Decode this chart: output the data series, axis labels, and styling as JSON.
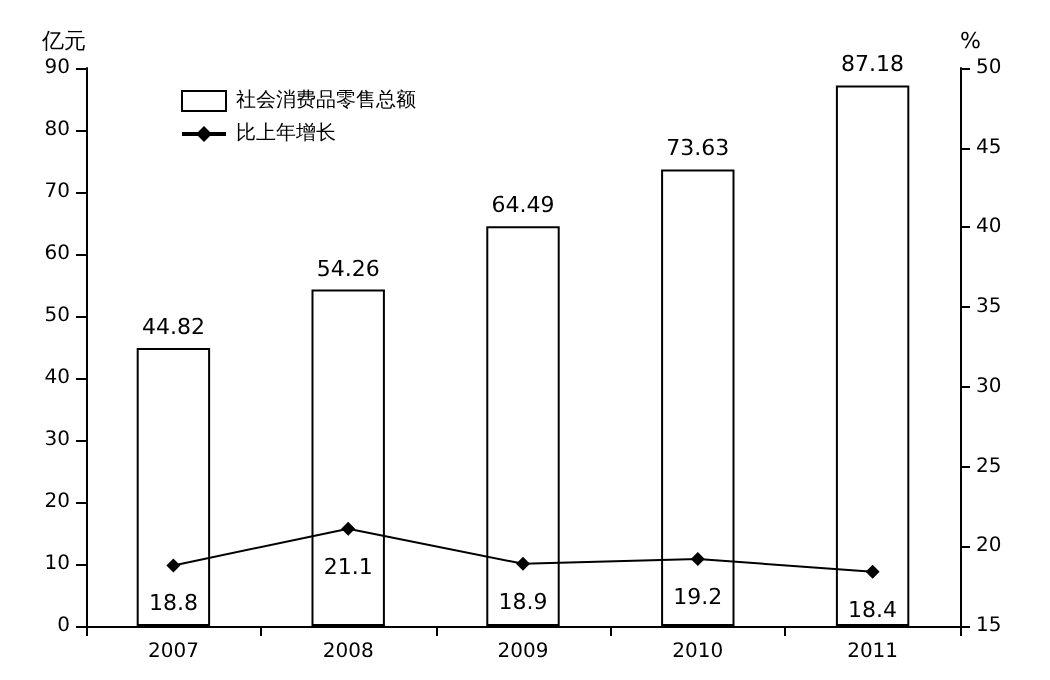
{
  "chart_data": {
    "type": "bar",
    "ylabel": "亿元",
    "y2label": "%",
    "categories": [
      "2007",
      "2008",
      "2009",
      "2010",
      "2011"
    ],
    "series": [
      {
        "name": "社会消费品零售总额",
        "color": "#ffffff",
        "values": [
          44.82,
          54.26,
          64.49,
          73.63,
          87.18
        ]
      },
      {
        "name": "比上年增长",
        "type": "line",
        "axis": "y2",
        "color": "#000000",
        "values": [
          18.8,
          21.1,
          18.9,
          19.2,
          18.4
        ]
      }
    ],
    "ylim": [
      0,
      90
    ],
    "yticks": [
      0,
      10,
      20,
      30,
      40,
      50,
      60,
      70,
      80,
      90
    ],
    "y2lim": [
      15,
      50
    ],
    "y2ticks": [
      15,
      20,
      25,
      30,
      35,
      40,
      45,
      50
    ],
    "data_labels": true,
    "grid": false,
    "legend": "top left",
    "marker": "diamond",
    "line_style": "solid"
  }
}
